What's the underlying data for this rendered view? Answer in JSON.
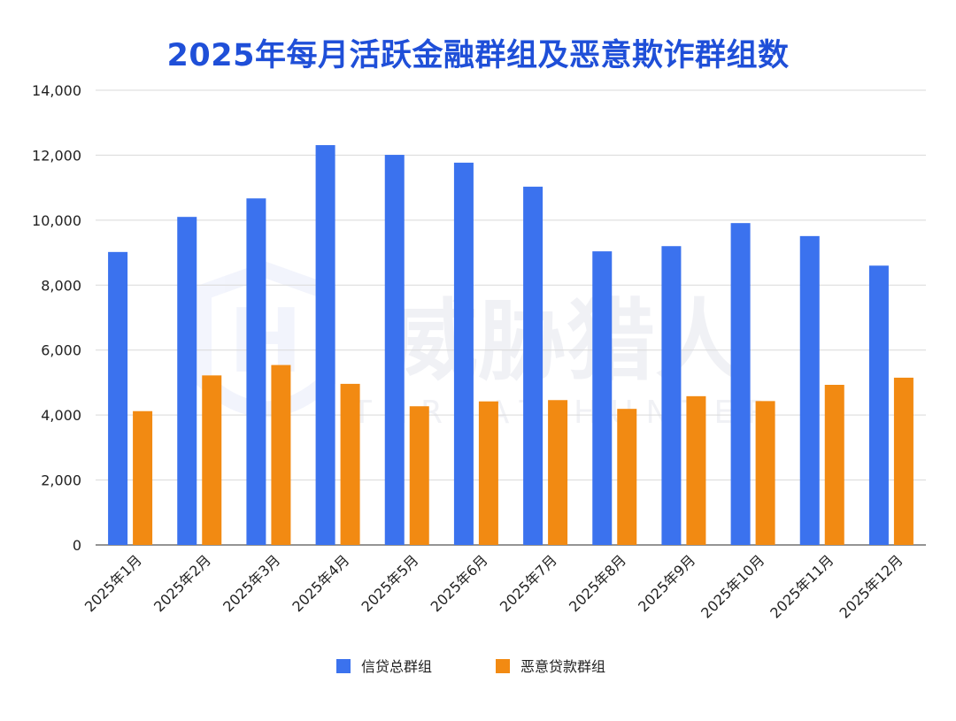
{
  "chart_data": {
    "type": "bar",
    "title": "2025年每月活跃金融群组及恶意欺诈群组数",
    "xlabel": "",
    "ylabel": "",
    "ylim": [
      0,
      14000
    ],
    "yticks": [
      0,
      2000,
      4000,
      6000,
      8000,
      10000,
      12000,
      14000
    ],
    "ytick_labels": [
      "0",
      "2,000",
      "4,000",
      "6,000",
      "8,000",
      "10,000",
      "12,000",
      "14,000"
    ],
    "grid": true,
    "legend_position": "bottom",
    "categories": [
      "2025年1月",
      "2025年2月",
      "2025年3月",
      "2025年4月",
      "2025年5月",
      "2025年6月",
      "2025年7月",
      "2025年8月",
      "2025年9月",
      "2025年10月",
      "2025年11月",
      "2025年12月"
    ],
    "series": [
      {
        "name": "信贷总群组",
        "color": "#3b72ee",
        "values": [
          9020,
          10100,
          10670,
          12310,
          12010,
          11770,
          11030,
          9040,
          9200,
          9910,
          9510,
          8600
        ]
      },
      {
        "name": "恶意贷款群组",
        "color": "#f28a12",
        "values": [
          4120,
          5220,
          5540,
          4960,
          4270,
          4420,
          4460,
          4190,
          4580,
          4430,
          4930,
          5150
        ]
      }
    ]
  },
  "watermark": {
    "text": "威胁猎人",
    "subtext": "THREAT HUNTER"
  }
}
